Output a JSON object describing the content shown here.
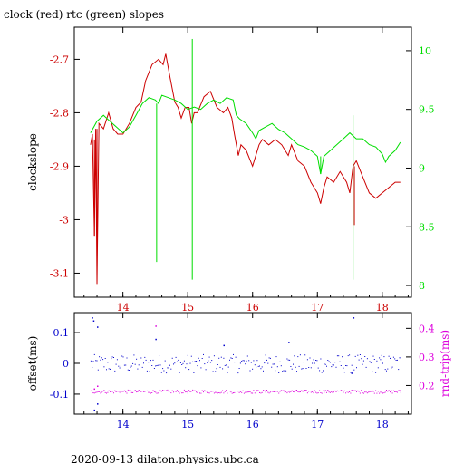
{
  "title": "clock (red) rtc (green) slopes",
  "footer": "2020-09-13  dilaton.physics.ubc.ca",
  "colors": {
    "red": "#cc0000",
    "green": "#00dd00",
    "blue": "#0000cc",
    "magenta": "#dd00dd",
    "frame": "#000000"
  },
  "chart_data": [
    {
      "type": "line",
      "title": "clock (red) rtc (green) slopes",
      "xlabel": "",
      "ylabel": "clockslope",
      "y2label": "",
      "xlim": [
        13.25,
        18.45
      ],
      "ylim": [
        -3.145,
        -2.64
      ],
      "y2lim": [
        7.9,
        10.2
      ],
      "x_ticks": [
        14,
        15,
        16,
        17,
        18
      ],
      "y_ticks": [
        -2.7,
        -2.8,
        -2.9,
        -3,
        -3.1
      ],
      "y_tick_labels": [
        "-2.7",
        "-2.8",
        "-2.9",
        "-3",
        "-3.1"
      ],
      "y2_ticks": [
        10,
        9.5,
        9,
        8.5,
        8
      ],
      "y2_tick_labels": [
        "10",
        "9.5",
        "9",
        "8.5",
        "8"
      ],
      "series": [
        {
          "axis": "left",
          "color": "red",
          "points": [
            [
              13.5,
              -2.86
            ],
            [
              13.53,
              -2.84
            ],
            [
              13.56,
              -3.03
            ],
            [
              13.58,
              -2.83
            ],
            [
              13.6,
              -3.12
            ],
            [
              13.63,
              -2.82
            ],
            [
              13.7,
              -2.83
            ],
            [
              13.78,
              -2.8
            ],
            [
              13.85,
              -2.83
            ],
            [
              13.92,
              -2.84
            ],
            [
              14.0,
              -2.84
            ],
            [
              14.1,
              -2.82
            ],
            [
              14.2,
              -2.79
            ],
            [
              14.28,
              -2.78
            ],
            [
              14.35,
              -2.74
            ],
            [
              14.45,
              -2.71
            ],
            [
              14.55,
              -2.7
            ],
            [
              14.62,
              -2.71
            ],
            [
              14.66,
              -2.69
            ],
            [
              14.72,
              -2.73
            ],
            [
              14.8,
              -2.78
            ],
            [
              14.85,
              -2.79
            ],
            [
              14.9,
              -2.81
            ],
            [
              14.96,
              -2.79
            ],
            [
              15.02,
              -2.79
            ],
            [
              15.06,
              -2.82
            ],
            [
              15.1,
              -2.8
            ],
            [
              15.15,
              -2.8
            ],
            [
              15.25,
              -2.77
            ],
            [
              15.35,
              -2.76
            ],
            [
              15.45,
              -2.79
            ],
            [
              15.55,
              -2.8
            ],
            [
              15.62,
              -2.79
            ],
            [
              15.68,
              -2.81
            ],
            [
              15.72,
              -2.84
            ],
            [
              15.78,
              -2.88
            ],
            [
              15.82,
              -2.86
            ],
            [
              15.9,
              -2.87
            ],
            [
              16.0,
              -2.9
            ],
            [
              16.1,
              -2.86
            ],
            [
              16.15,
              -2.85
            ],
            [
              16.25,
              -2.86
            ],
            [
              16.35,
              -2.85
            ],
            [
              16.45,
              -2.86
            ],
            [
              16.55,
              -2.88
            ],
            [
              16.6,
              -2.86
            ],
            [
              16.7,
              -2.89
            ],
            [
              16.8,
              -2.9
            ],
            [
              16.9,
              -2.93
            ],
            [
              17.0,
              -2.95
            ],
            [
              17.05,
              -2.97
            ],
            [
              17.1,
              -2.94
            ],
            [
              17.15,
              -2.92
            ],
            [
              17.25,
              -2.93
            ],
            [
              17.35,
              -2.91
            ],
            [
              17.45,
              -2.93
            ],
            [
              17.5,
              -2.95
            ],
            [
              17.55,
              -2.9
            ],
            [
              17.6,
              -2.89
            ],
            [
              17.7,
              -2.92
            ],
            [
              17.8,
              -2.95
            ],
            [
              17.9,
              -2.96
            ],
            [
              18.0,
              -2.95
            ],
            [
              18.1,
              -2.94
            ],
            [
              18.2,
              -2.93
            ],
            [
              18.28,
              -2.93
            ]
          ]
        },
        {
          "axis": "right",
          "color": "green",
          "points": [
            [
              13.5,
              9.3
            ],
            [
              13.55,
              9.35
            ],
            [
              13.6,
              9.4
            ],
            [
              13.7,
              9.45
            ],
            [
              13.8,
              9.4
            ],
            [
              13.9,
              9.35
            ],
            [
              14.0,
              9.3
            ],
            [
              14.1,
              9.35
            ],
            [
              14.2,
              9.45
            ],
            [
              14.3,
              9.55
            ],
            [
              14.4,
              9.6
            ],
            [
              14.5,
              9.58
            ],
            [
              14.55,
              9.55
            ],
            [
              14.6,
              9.62
            ],
            [
              14.7,
              9.6
            ],
            [
              14.8,
              9.58
            ],
            [
              14.9,
              9.55
            ],
            [
              15.0,
              9.5
            ],
            [
              15.1,
              9.52
            ],
            [
              15.2,
              9.5
            ],
            [
              15.3,
              9.55
            ],
            [
              15.4,
              9.58
            ],
            [
              15.5,
              9.55
            ],
            [
              15.6,
              9.6
            ],
            [
              15.7,
              9.58
            ],
            [
              15.75,
              9.45
            ],
            [
              15.8,
              9.42
            ],
            [
              15.9,
              9.38
            ],
            [
              16.0,
              9.3
            ],
            [
              16.05,
              9.25
            ],
            [
              16.1,
              9.32
            ],
            [
              16.2,
              9.35
            ],
            [
              16.3,
              9.38
            ],
            [
              16.4,
              9.33
            ],
            [
              16.5,
              9.3
            ],
            [
              16.6,
              9.25
            ],
            [
              16.7,
              9.2
            ],
            [
              16.8,
              9.18
            ],
            [
              16.9,
              9.15
            ],
            [
              17.0,
              9.1
            ],
            [
              17.05,
              8.95
            ],
            [
              17.1,
              9.1
            ],
            [
              17.2,
              9.15
            ],
            [
              17.3,
              9.2
            ],
            [
              17.4,
              9.25
            ],
            [
              17.5,
              9.3
            ],
            [
              17.6,
              9.25
            ],
            [
              17.7,
              9.25
            ],
            [
              17.8,
              9.2
            ],
            [
              17.9,
              9.18
            ],
            [
              18.0,
              9.12
            ],
            [
              18.05,
              9.05
            ],
            [
              18.1,
              9.1
            ],
            [
              18.2,
              9.15
            ],
            [
              18.28,
              9.22
            ]
          ]
        }
      ],
      "spikes": [
        {
          "axis": "left",
          "color": "red",
          "x": 13.56,
          "y_from": -2.85,
          "y_to": -3.03
        },
        {
          "axis": "left",
          "color": "red",
          "x": 13.6,
          "y_from": -2.83,
          "y_to": -3.12
        },
        {
          "axis": "left",
          "color": "red",
          "x": 17.57,
          "y_from": -2.9,
          "y_to": -3.01
        },
        {
          "axis": "right",
          "color": "green",
          "x": 14.52,
          "y_from": 9.55,
          "y_to": 8.2
        },
        {
          "axis": "right",
          "color": "green",
          "x": 15.07,
          "y_from": 9.52,
          "y_to": 8.05
        },
        {
          "axis": "right",
          "color": "green",
          "x": 15.07,
          "y_from": 9.52,
          "y_to": 10.1
        },
        {
          "axis": "right",
          "color": "green",
          "x": 17.55,
          "y_from": 9.3,
          "y_to": 8.05
        },
        {
          "axis": "right",
          "color": "green",
          "x": 17.55,
          "y_from": 9.3,
          "y_to": 9.45
        },
        {
          "axis": "right",
          "color": "green",
          "x": 17.05,
          "y_from": 9.1,
          "y_to": 8.95
        }
      ]
    },
    {
      "type": "scatter",
      "xlabel": "",
      "ylabel": "offset(ms)",
      "y2label": "rnd-trip(ms)",
      "xlim": [
        13.25,
        18.45
      ],
      "ylim": [
        -0.165,
        0.165
      ],
      "y2lim": [
        0.1,
        0.455
      ],
      "x_ticks": [
        14,
        15,
        16,
        17,
        18
      ],
      "y_ticks": [
        0.1,
        0,
        -0.1
      ],
      "y_tick_labels": [
        "0.1",
        "0",
        "-0.1"
      ],
      "y2_ticks": [
        0.4,
        0.3,
        0.2
      ],
      "y2_tick_labels": [
        "0.4",
        "0.3",
        "0.2"
      ],
      "series": [
        {
          "axis": "left",
          "color": "blue",
          "x_range": [
            13.5,
            18.28
          ],
          "y_center": 0.0,
          "spread": 0.03,
          "outliers": [
            [
              13.52,
              0.15
            ],
            [
              13.54,
              0.14
            ],
            [
              13.6,
              0.12
            ],
            [
              14.5,
              0.08
            ],
            [
              15.55,
              0.06
            ],
            [
              16.55,
              0.07
            ],
            [
              17.55,
              0.15
            ],
            [
              17.52,
              -0.03
            ],
            [
              13.55,
              -0.15
            ],
            [
              13.6,
              -0.13
            ]
          ]
        },
        {
          "axis": "right",
          "color": "magenta",
          "x_range": [
            13.5,
            18.28
          ],
          "y_center": 0.18,
          "spread": 0.006,
          "outliers": [
            [
              14.5,
              0.41
            ],
            [
              13.55,
              0.19
            ],
            [
              13.6,
              0.2
            ]
          ]
        }
      ]
    }
  ]
}
